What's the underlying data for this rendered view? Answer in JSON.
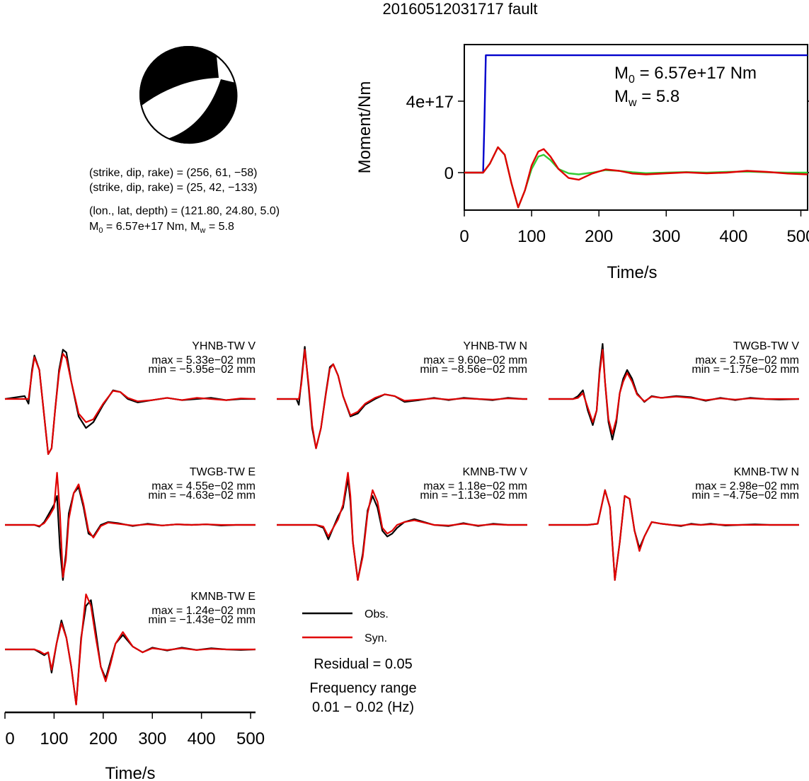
{
  "title": "20160512031717 fault",
  "colors": {
    "obs": "#000000",
    "syn": "#e00000",
    "moment": "#0000cc",
    "stf_green": "#33cc33"
  },
  "mechanism": {
    "nodal_plane_1": "(strike, dip, rake) = (256, 61, −58)",
    "nodal_plane_2": "(strike, dip, rake) = (25, 42, −133)",
    "location": "(lon., lat, depth) = (121.80, 24.80, 5.0)",
    "m0_prefix": "M",
    "m0_sub": "0",
    "m0_value": " = 6.57e+17 Nm, M",
    "mw_sub": "w",
    "mw_value": " = 5.8"
  },
  "moment_panel": {
    "m0_prefix": "M",
    "m0_sub": "0",
    "m0_text": " = 6.57e+17 Nm",
    "mw_prefix": "M",
    "mw_sub": "w",
    "mw_text": " = 5.8"
  },
  "legend": {
    "obs": "Obs.",
    "syn": "Syn.",
    "residual": "Residual = 0.05",
    "freq_title": "Frequency range",
    "freq_value": "0.01 − 0.02 (Hz)"
  },
  "chart_data": [
    {
      "type": "line",
      "title": "",
      "xlabel": "Time/s",
      "ylabel": "Moment/Nm",
      "xlim": [
        0,
        510
      ],
      "ylim": [
        -2.1e+17,
        7.2e+17
      ],
      "x_ticks": [
        0,
        100,
        200,
        300,
        400,
        500
      ],
      "x_tick_labels": [
        "0",
        "100",
        "200",
        "300",
        "400",
        "500"
      ],
      "y_ticks": [
        0,
        4e+17
      ],
      "y_tick_labels": [
        "0",
        "4e+17"
      ],
      "series": [
        {
          "color": "#0000cc",
          "x": [
            0,
            28,
            30,
            32,
            510
          ],
          "y": [
            0,
            0,
            3e+17,
            6.57e+17,
            6.57e+17
          ]
        },
        {
          "color": "#33cc33",
          "x": [
            0,
            28,
            38,
            50,
            60,
            70,
            80,
            90,
            100,
            110,
            118,
            128,
            140,
            155,
            170,
            190,
            210,
            230,
            250,
            270,
            300,
            330,
            360,
            390,
            420,
            450,
            480,
            510
          ],
          "y": [
            0,
            0,
            5e+16,
            1.42e+17,
            1e+17,
            -6e+16,
            -1.95e+17,
            -1e+17,
            2e+16,
            9e+16,
            1e+17,
            7e+16,
            2e+16,
            -4000000000000000.0,
            -1e+16,
            0,
            1.4e+16,
            1e+16,
            2000000000000000.0,
            -3000000000000000.0,
            0,
            3000000000000000.0,
            0,
            4000000000000000.0,
            6000000000000000.0,
            2000000000000000.0,
            0,
            0
          ]
        },
        {
          "color": "#e00000",
          "x": [
            0,
            28,
            38,
            50,
            60,
            70,
            80,
            90,
            100,
            110,
            118,
            128,
            140,
            155,
            170,
            190,
            210,
            230,
            250,
            270,
            300,
            330,
            360,
            390,
            420,
            450,
            480,
            510
          ],
          "y": [
            0,
            0,
            5e+16,
            1.42e+17,
            1e+17,
            -6e+16,
            -1.95e+17,
            -1e+17,
            4e+16,
            1.18e+17,
            1.32e+17,
            9e+16,
            2e+16,
            -3e+16,
            -4e+16,
            -5000000000000000.0,
            1.8e+16,
            1e+16,
            -5000000000000000.0,
            -1e+16,
            -4000000000000000.0,
            1000000000000000.0,
            -4000000000000000.0,
            0,
            1e+16,
            4000000000000000.0,
            -5000000000000000.0,
            -1e+16
          ]
        }
      ]
    },
    {
      "type": "line",
      "name": "traces",
      "xlabel": "Time/s",
      "xlim": [
        0,
        510
      ],
      "x_ticks": [
        0,
        100,
        200,
        300,
        400,
        500
      ],
      "x_tick_labels": [
        "0",
        "100",
        "200",
        "300",
        "400",
        "500"
      ],
      "traces": [
        {
          "station": "YHNB-TW V",
          "max": "max = 5.33e−02 mm",
          "min": "min = −5.95e−02 mm",
          "x": [
            0,
            40,
            48,
            55,
            60,
            70,
            80,
            88,
            95,
            102,
            110,
            118,
            125,
            135,
            150,
            165,
            180,
            200,
            220,
            235,
            250,
            270,
            300,
            330,
            360,
            390,
            420,
            450,
            480,
            510
          ],
          "obs": [
            0,
            0.05,
            -0.08,
            0.5,
            0.75,
            0.5,
            -0.3,
            -0.95,
            -0.85,
            -0.2,
            0.5,
            0.85,
            0.8,
            0.3,
            -0.3,
            -0.5,
            -0.4,
            -0.1,
            0.15,
            0.12,
            0,
            -0.06,
            -0.02,
            0.02,
            -0.02,
            0,
            0.02,
            -0.02,
            0,
            0
          ],
          "syn": [
            0,
            0,
            0,
            0.45,
            0.72,
            0.5,
            -0.3,
            -0.95,
            -0.85,
            -0.2,
            0.45,
            0.78,
            0.7,
            0.3,
            -0.25,
            -0.4,
            -0.35,
            -0.08,
            0.14,
            0.12,
            0.02,
            -0.04,
            -0.02,
            0.02,
            -0.02,
            0.02,
            0,
            -0.02,
            0.01,
            0
          ]
        },
        {
          "station": "YHNB-TW N",
          "max": "max = 9.60e−02 mm",
          "min": "min = −8.56e−02 mm",
          "x": [
            0,
            40,
            45,
            50,
            57,
            65,
            72,
            80,
            90,
            100,
            108,
            115,
            125,
            135,
            150,
            165,
            180,
            200,
            220,
            240,
            260,
            290,
            320,
            350,
            380,
            410,
            440,
            470,
            500,
            510
          ],
          "obs": [
            0,
            0,
            -0.1,
            0.3,
            0.9,
            0.2,
            -0.5,
            -0.85,
            -0.5,
            0.1,
            0.55,
            0.6,
            0.4,
            0.05,
            -0.3,
            -0.25,
            -0.1,
            0,
            0.08,
            0.05,
            -0.05,
            -0.02,
            0.02,
            -0.02,
            0.02,
            0,
            -0.02,
            0.02,
            0,
            0
          ],
          "syn": [
            0,
            0,
            0,
            0.25,
            0.85,
            0.25,
            -0.45,
            -0.85,
            -0.5,
            0.08,
            0.52,
            0.6,
            0.4,
            0.05,
            -0.28,
            -0.22,
            -0.08,
            0.02,
            0.08,
            0.05,
            -0.03,
            -0.01,
            0.01,
            -0.01,
            0.01,
            0,
            -0.01,
            0.01,
            0,
            0
          ]
        },
        {
          "station": "TWGB-TW V",
          "max": "max = 2.57e−02 mm",
          "min": "min = −1.75e−02 mm",
          "x": [
            0,
            50,
            60,
            70,
            80,
            90,
            98,
            104,
            110,
            115,
            122,
            130,
            138,
            145,
            152,
            160,
            170,
            180,
            195,
            210,
            230,
            260,
            290,
            320,
            350,
            380,
            410,
            440,
            470,
            510
          ],
          "obs": [
            0,
            0,
            0.05,
            0.15,
            -0.2,
            -0.45,
            -0.2,
            0.5,
            0.95,
            0.3,
            -0.4,
            -0.7,
            -0.4,
            0.1,
            0.35,
            0.5,
            0.35,
            0.1,
            -0.05,
            0.05,
            0.02,
            0.05,
            0.03,
            -0.03,
            0.02,
            -0.02,
            0.02,
            0,
            -0.01,
            0
          ],
          "syn": [
            0,
            0,
            0.02,
            0.1,
            -0.15,
            -0.4,
            -0.2,
            0.45,
            0.85,
            0.3,
            -0.35,
            -0.6,
            -0.35,
            0.1,
            0.3,
            0.45,
            0.3,
            0.08,
            -0.04,
            0.04,
            0.02,
            0.04,
            0.02,
            -0.02,
            0.01,
            -0.01,
            0.01,
            0,
            0,
            0
          ]
        },
        {
          "station": "TWGB-TW E",
          "max": "max = 4.55e−02 mm",
          "min": "min = −4.63e−02 mm",
          "x": [
            0,
            60,
            70,
            80,
            90,
            100,
            106,
            112,
            118,
            124,
            130,
            140,
            150,
            160,
            170,
            180,
            195,
            210,
            230,
            260,
            290,
            320,
            350,
            380,
            410,
            440,
            470,
            510
          ],
          "obs": [
            0,
            0,
            -0.03,
            0.05,
            0.2,
            0.35,
            0.5,
            -0.4,
            -0.95,
            -0.5,
            0.2,
            0.55,
            0.65,
            0.3,
            -0.15,
            -0.2,
            0,
            0.05,
            0.03,
            -0.02,
            0.02,
            -0.01,
            0.01,
            0,
            0.01,
            -0.01,
            0,
            0
          ],
          "syn": [
            0,
            0,
            -0.02,
            0.03,
            0.15,
            0.3,
            0.9,
            0.2,
            -0.9,
            -0.6,
            0.1,
            0.55,
            0.7,
            0.35,
            -0.1,
            -0.22,
            -0.02,
            0.04,
            0.02,
            -0.01,
            0.01,
            -0.01,
            0.01,
            0,
            0.01,
            0,
            0,
            0
          ]
        },
        {
          "station": "KMNB-TW V",
          "max": "max = 1.18e−02 mm",
          "min": "min = −1.13e−02 mm",
          "x": [
            0,
            80,
            95,
            105,
            115,
            125,
            135,
            145,
            150,
            155,
            165,
            175,
            185,
            195,
            205,
            215,
            225,
            235,
            245,
            260,
            280,
            300,
            320,
            350,
            380,
            410,
            440,
            470,
            510
          ],
          "obs": [
            0,
            0,
            -0.05,
            -0.25,
            -0.05,
            0.15,
            0.3,
            0.8,
            0.4,
            -0.3,
            -0.95,
            -0.5,
            0.25,
            0.5,
            0.3,
            -0.1,
            -0.2,
            -0.15,
            -0.05,
            0.05,
            0.1,
            0.05,
            0,
            -0.02,
            0.03,
            -0.02,
            0.02,
            0,
            0
          ],
          "syn": [
            0,
            0,
            -0.03,
            -0.2,
            -0.05,
            0.1,
            0.35,
            0.9,
            0.5,
            -0.3,
            -0.95,
            -0.55,
            0.2,
            0.6,
            0.4,
            -0.05,
            -0.15,
            -0.1,
            0,
            0.05,
            0.08,
            0.04,
            0,
            -0.01,
            0.02,
            -0.01,
            0.01,
            0,
            0
          ]
        },
        {
          "station": "KMNB-TW N",
          "max": "max = 2.98e−02 mm",
          "min": "min = −4.75e−02 mm",
          "x": [
            0,
            80,
            100,
            115,
            125,
            135,
            145,
            155,
            165,
            175,
            185,
            195,
            210,
            230,
            250,
            270,
            290,
            310,
            330,
            360,
            390,
            420,
            450,
            480,
            510
          ],
          "obs": [
            0,
            0,
            0.02,
            0.6,
            0.3,
            -0.95,
            -0.3,
            0.5,
            0.45,
            -0.1,
            -0.4,
            -0.2,
            0.05,
            0.02,
            0,
            -0.02,
            0.02,
            0,
            0.02,
            -0.01,
            0,
            0.01,
            0,
            0,
            0
          ],
          "syn": [
            0,
            0,
            0.02,
            0.6,
            0.3,
            -0.95,
            -0.3,
            0.5,
            0.45,
            -0.1,
            -0.45,
            -0.2,
            0.05,
            0.02,
            0,
            -0.01,
            0.01,
            0,
            0.01,
            0,
            0,
            0,
            0,
            0,
            0
          ]
        },
        {
          "station": "KMNB-TW E",
          "max": "max = 1.24e−02 mm",
          "min": "min = −1.43e−02 mm",
          "x": [
            0,
            60,
            70,
            80,
            88,
            95,
            105,
            115,
            125,
            135,
            145,
            155,
            165,
            175,
            185,
            195,
            205,
            215,
            225,
            240,
            260,
            280,
            300,
            330,
            360,
            390,
            420,
            450,
            480,
            510
          ],
          "obs": [
            0,
            0,
            -0.05,
            -0.1,
            -0.05,
            -0.4,
            0.1,
            0.5,
            0.2,
            -0.3,
            -0.95,
            0.2,
            0.75,
            0.85,
            0.3,
            -0.3,
            -0.5,
            -0.2,
            0.1,
            0.25,
            0.05,
            -0.05,
            0.03,
            -0.02,
            0.03,
            -0.01,
            0.02,
            0,
            -0.01,
            0
          ],
          "syn": [
            0,
            0,
            -0.03,
            -0.08,
            -0.05,
            -0.35,
            0.1,
            0.45,
            0.2,
            -0.3,
            -0.95,
            0.15,
            0.95,
            0.75,
            0.2,
            -0.3,
            -0.55,
            -0.25,
            0.1,
            0.3,
            0.05,
            -0.05,
            0.02,
            -0.01,
            0.02,
            -0.01,
            0.01,
            0,
            0,
            0
          ]
        }
      ]
    }
  ]
}
